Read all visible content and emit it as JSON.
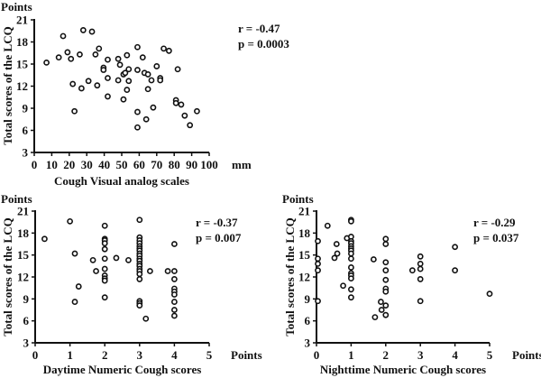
{
  "chart_data": [
    {
      "id": "vas",
      "type": "scatter",
      "ylabel": "Total scores of the LCQ",
      "yunit": "Points",
      "xlabel": "Cough Visual analog scales",
      "xunit": "mm",
      "xlim": [
        0,
        100
      ],
      "ylim": [
        3,
        21
      ],
      "xticks": [
        0,
        10,
        20,
        30,
        40,
        50,
        60,
        70,
        80,
        90,
        100
      ],
      "yticks": [
        3,
        6,
        9,
        12,
        15,
        18,
        21
      ],
      "stats": {
        "r": "r = -0.47",
        "p": "p = 0.0003"
      },
      "points": [
        [
          7,
          15.2
        ],
        [
          14,
          15.9
        ],
        [
          16.5,
          18.8
        ],
        [
          19,
          16.6
        ],
        [
          21,
          15.7
        ],
        [
          22,
          12.3
        ],
        [
          23,
          8.6
        ],
        [
          26,
          16.3
        ],
        [
          27,
          11.7
        ],
        [
          28,
          19.6
        ],
        [
          31,
          12.7
        ],
        [
          33,
          19.4
        ],
        [
          35,
          16.3
        ],
        [
          36,
          12.1
        ],
        [
          37,
          17.1
        ],
        [
          39.6,
          14.5
        ],
        [
          39.6,
          14.2
        ],
        [
          42,
          15.6
        ],
        [
          42,
          13.1
        ],
        [
          42,
          10.6
        ],
        [
          48,
          12.8
        ],
        [
          48,
          15.7
        ],
        [
          49,
          14.9
        ],
        [
          51,
          13.6
        ],
        [
          51,
          10.2
        ],
        [
          52,
          13.8
        ],
        [
          53,
          16.2
        ],
        [
          53,
          11.5
        ],
        [
          54,
          14.3
        ],
        [
          54,
          12.7
        ],
        [
          59,
          14.2
        ],
        [
          59,
          17.3
        ],
        [
          59,
          8.5
        ],
        [
          59,
          6.4
        ],
        [
          62,
          15.9
        ],
        [
          63,
          13.8
        ],
        [
          65,
          13.6
        ],
        [
          65,
          11.6
        ],
        [
          64,
          7.5
        ],
        [
          67,
          12.8
        ],
        [
          68,
          9.1
        ],
        [
          70,
          14.7
        ],
        [
          72,
          13.1
        ],
        [
          72,
          12.8
        ],
        [
          74,
          17.1
        ],
        [
          77,
          16.8
        ],
        [
          81,
          10.1
        ],
        [
          81,
          9.7
        ],
        [
          82,
          14.3
        ],
        [
          84,
          9.5
        ],
        [
          86,
          8.0
        ],
        [
          89,
          6.7
        ],
        [
          93,
          8.6
        ]
      ]
    },
    {
      "id": "daytime",
      "type": "scatter",
      "ylabel": "Total scores of the LCQ",
      "yunit": "Points",
      "xlabel": "Daytime Numeric Cough scores",
      "xunit": "Points",
      "xlim": [
        0,
        5
      ],
      "ylim": [
        3,
        21
      ],
      "xticks": [
        0,
        1,
        2,
        3,
        4,
        5
      ],
      "yticks": [
        3,
        6,
        9,
        12,
        15,
        18,
        21
      ],
      "stats": {
        "r": "r = -0.37",
        "p": "p = 0.007"
      },
      "points": [
        [
          0.27,
          17.2
        ],
        [
          1.0,
          19.6
        ],
        [
          1.14,
          15.2
        ],
        [
          1.14,
          8.6
        ],
        [
          1.25,
          10.7
        ],
        [
          1.66,
          14.3
        ],
        [
          1.75,
          12.8
        ],
        [
          2,
          19.0
        ],
        [
          2,
          17.2
        ],
        [
          2,
          17.0
        ],
        [
          2,
          16.6
        ],
        [
          2,
          15.8
        ],
        [
          2,
          14.5
        ],
        [
          2,
          13.1
        ],
        [
          2,
          12.2
        ],
        [
          2,
          11.8
        ],
        [
          2,
          11.5
        ],
        [
          2,
          9.2
        ],
        [
          2.33,
          14.6
        ],
        [
          2.68,
          14.3
        ],
        [
          3,
          19.8
        ],
        [
          3,
          17.4
        ],
        [
          3,
          17.0
        ],
        [
          3,
          16.6
        ],
        [
          3,
          16.2
        ],
        [
          3,
          15.9
        ],
        [
          3,
          15.6
        ],
        [
          3,
          15.2
        ],
        [
          3,
          14.9
        ],
        [
          3,
          14.5
        ],
        [
          3,
          14.2
        ],
        [
          3,
          13.8
        ],
        [
          3,
          13.5
        ],
        [
          3,
          13.1
        ],
        [
          3,
          12.8
        ],
        [
          3,
          12.4
        ],
        [
          3,
          11.7
        ],
        [
          3,
          8.7
        ],
        [
          3,
          8.4
        ],
        [
          3,
          8.1
        ],
        [
          3.18,
          6.3
        ],
        [
          3.3,
          12.8
        ],
        [
          3.81,
          12.8
        ],
        [
          4,
          16.5
        ],
        [
          4,
          12.8
        ],
        [
          4,
          11.7
        ],
        [
          4,
          10.4
        ],
        [
          4,
          10.0
        ],
        [
          4,
          9.6
        ],
        [
          4,
          8.6
        ],
        [
          4,
          7.5
        ],
        [
          4,
          6.7
        ]
      ]
    },
    {
      "id": "nighttime",
      "type": "scatter",
      "ylabel": "Total scores of the LCQ",
      "yunit": "Points",
      "xlabel": "Nighttime Numeric Cough scores",
      "xunit": "Points",
      "xlim": [
        0,
        5
      ],
      "ylim": [
        3,
        21
      ],
      "xticks": [
        0,
        1,
        2,
        3,
        4,
        5
      ],
      "yticks": [
        3,
        6,
        9,
        12,
        15,
        18,
        21
      ],
      "stats": {
        "r": "r = -0.29",
        "p": "p = 0.037"
      },
      "points": [
        [
          0.04,
          16.9
        ],
        [
          0.04,
          14.5
        ],
        [
          0.04,
          13.8
        ],
        [
          0.04,
          12.9
        ],
        [
          0.04,
          8.7
        ],
        [
          0.32,
          19.0
        ],
        [
          0.52,
          14.6
        ],
        [
          0.58,
          16.5
        ],
        [
          0.6,
          15.2
        ],
        [
          0.77,
          10.8
        ],
        [
          0.88,
          17.3
        ],
        [
          1,
          19.8
        ],
        [
          1,
          19.6
        ],
        [
          1,
          17.5
        ],
        [
          1,
          16.9
        ],
        [
          1,
          16.6
        ],
        [
          1,
          16.2
        ],
        [
          1,
          15.9
        ],
        [
          1,
          15.6
        ],
        [
          1,
          15.2
        ],
        [
          1,
          14.5
        ],
        [
          1,
          13.3
        ],
        [
          1,
          12.5
        ],
        [
          1,
          12.2
        ],
        [
          1,
          11.8
        ],
        [
          1,
          10.3
        ],
        [
          1,
          9.2
        ],
        [
          1.65,
          14.4
        ],
        [
          1.69,
          6.5
        ],
        [
          1.86,
          8.6
        ],
        [
          1.88,
          7.5
        ],
        [
          2,
          17.2
        ],
        [
          2,
          16.5
        ],
        [
          2,
          14.0
        ],
        [
          2,
          12.9
        ],
        [
          2,
          11.6
        ],
        [
          2,
          10.4
        ],
        [
          2,
          10.0
        ],
        [
          2,
          8.1
        ],
        [
          2,
          6.8
        ],
        [
          2.77,
          12.9
        ],
        [
          3,
          14.8
        ],
        [
          3,
          13.8
        ],
        [
          3,
          13.1
        ],
        [
          3,
          11.7
        ],
        [
          3,
          8.7
        ],
        [
          4,
          16.1
        ],
        [
          4,
          12.9
        ],
        [
          5,
          9.7
        ]
      ]
    }
  ]
}
